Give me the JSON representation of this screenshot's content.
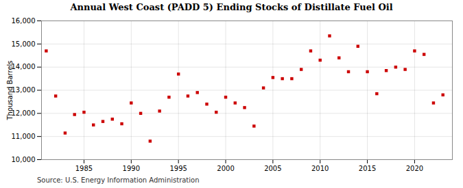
{
  "chart_data": {
    "type": "scatter",
    "title": "Annual West Coast (PADD 5) Ending Stocks of Distillate Fuel Oil",
    "ylabel": "Thousand Barrels",
    "source": "Source: U.S. Energy Information Administration",
    "color": "#cc0000",
    "marker": "square",
    "grid": true,
    "x": [
      1981,
      1982,
      1983,
      1984,
      1985,
      1986,
      1987,
      1988,
      1989,
      1990,
      1991,
      1992,
      1993,
      1994,
      1995,
      1996,
      1997,
      1998,
      1999,
      2000,
      2001,
      2002,
      2003,
      2004,
      2005,
      2006,
      2007,
      2008,
      2009,
      2010,
      2011,
      2012,
      2013,
      2014,
      2015,
      2016,
      2017,
      2018,
      2019,
      2020,
      2021,
      2022,
      2023
    ],
    "values": [
      14700,
      12750,
      11150,
      11950,
      12050,
      11500,
      11650,
      11750,
      11550,
      12450,
      12000,
      10800,
      12100,
      12700,
      13700,
      12750,
      12900,
      12400,
      12050,
      12700,
      12450,
      12250,
      11450,
      13100,
      13550,
      13500,
      13500,
      13900,
      14700,
      14300,
      15350,
      14400,
      13800,
      14900,
      13800,
      12850,
      13850,
      14000,
      13900,
      14700,
      14550,
      12450,
      12800
    ],
    "xlim": [
      1980.5,
      2024
    ],
    "xticks": [
      1985,
      1990,
      1995,
      2000,
      2005,
      2010,
      2015,
      2020
    ],
    "ylim": [
      10000,
      16000
    ],
    "yticks": [
      {
        "value": 10000,
        "label": "10,000"
      },
      {
        "value": 11000,
        "label": "11,000"
      },
      {
        "value": 12000,
        "label": "12,000"
      },
      {
        "value": 13000,
        "label": "13,000"
      },
      {
        "value": 14000,
        "label": "14,000"
      },
      {
        "value": 15000,
        "label": "15,000"
      },
      {
        "value": 16000,
        "label": "16,000"
      }
    ]
  }
}
